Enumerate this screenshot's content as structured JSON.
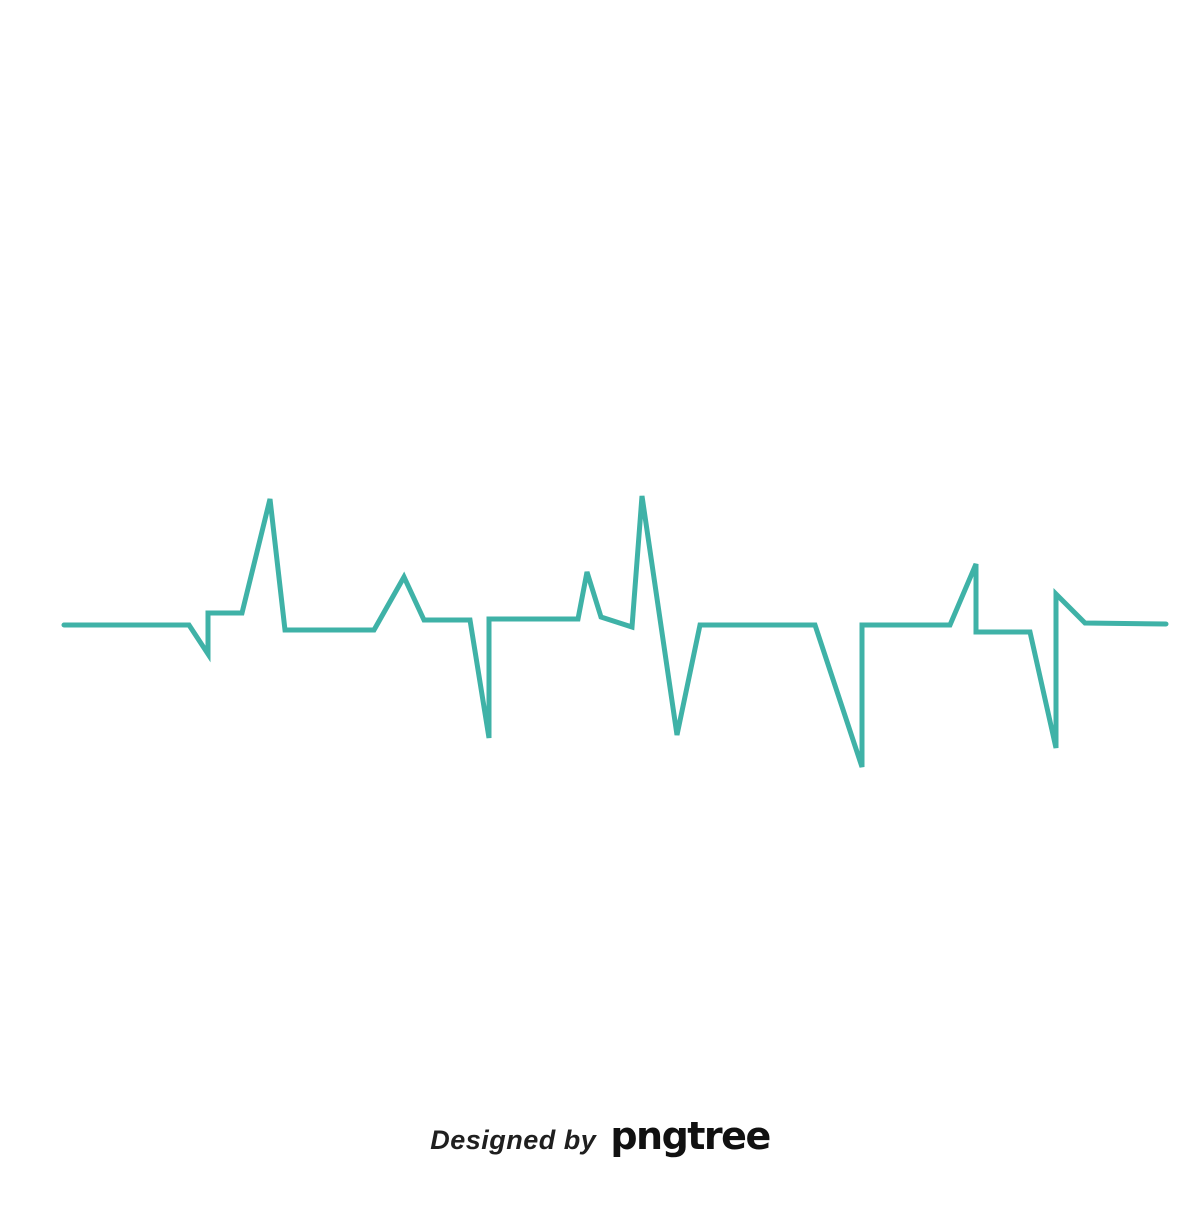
{
  "artwork": {
    "subject": "heartbeat-line-icon",
    "line_color": "#3fb2a7",
    "background_color": "#ffffff"
  },
  "watermark": {
    "designed_by": "Designed by",
    "brand": "pngtree",
    "text_color": "#1f1f1f"
  }
}
